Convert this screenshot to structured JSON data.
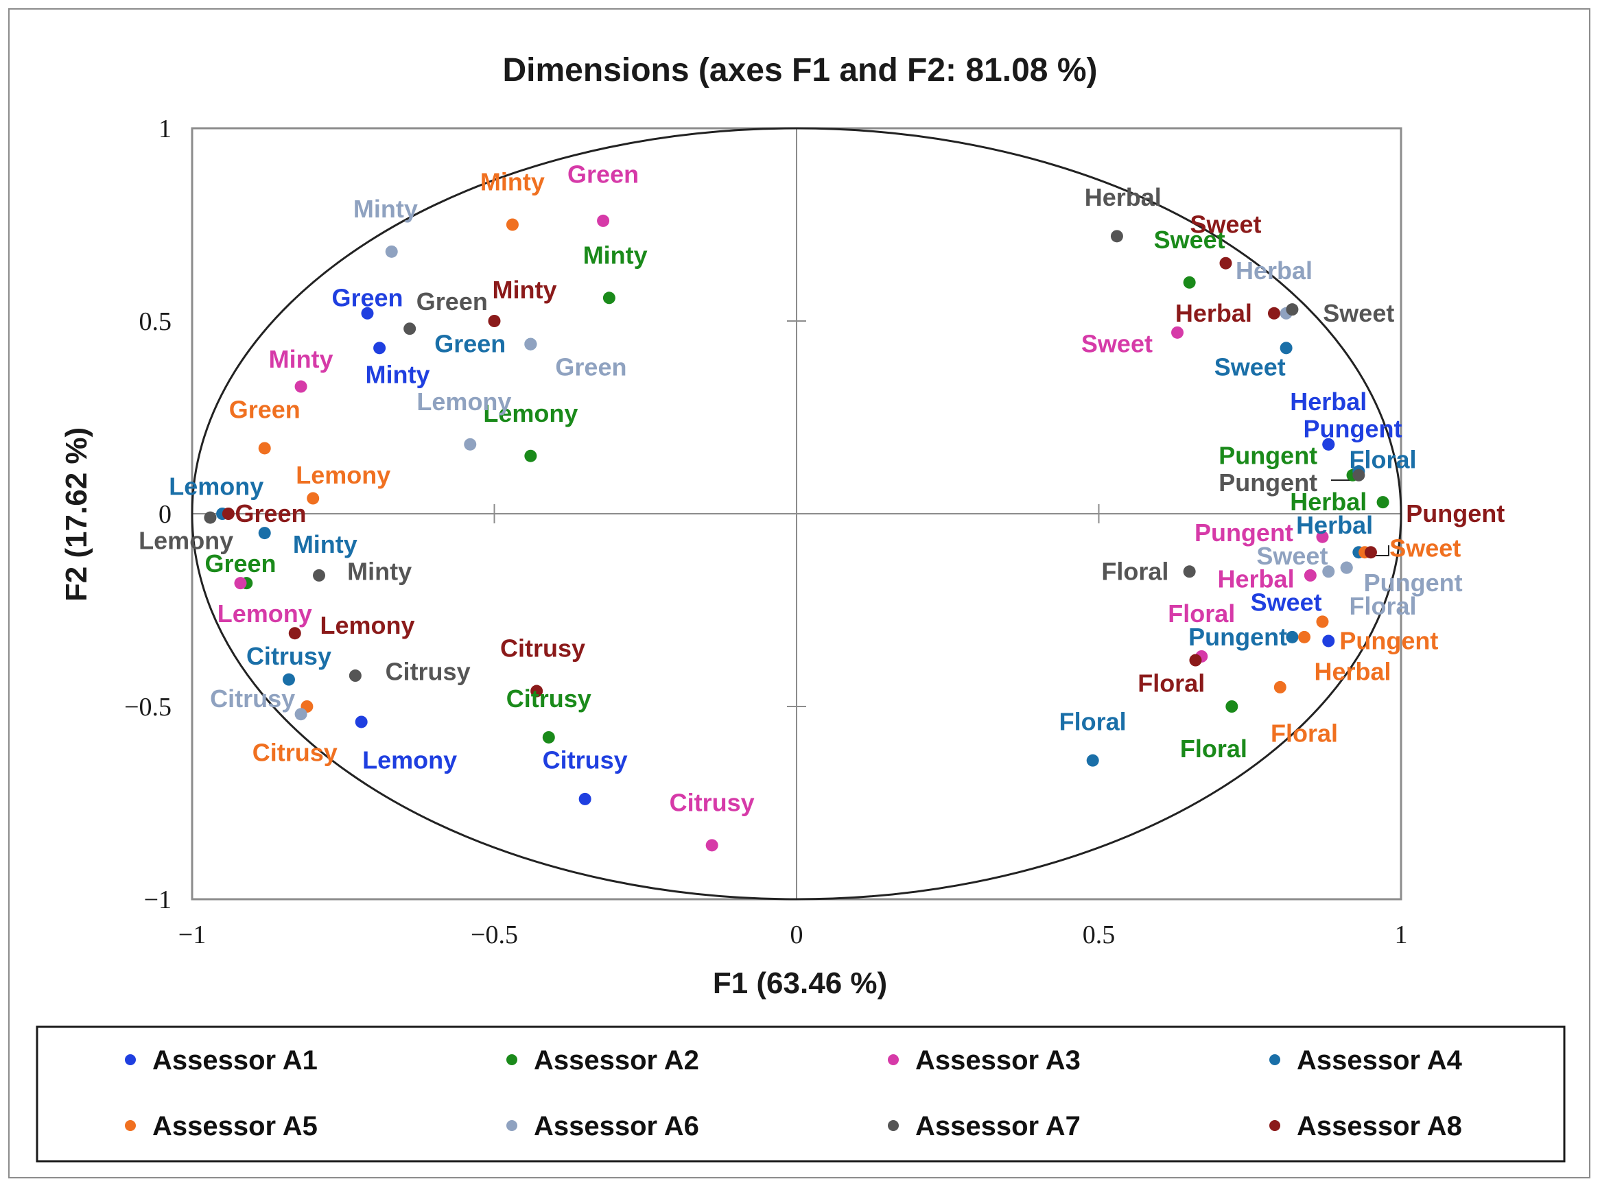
{
  "chart_data": {
    "type": "scatter",
    "title": "Dimensions (axes F1 and F2: 81.08 %)",
    "xlabel": "F1 (63.46 %)",
    "ylabel": "F2 (17.62 %)",
    "xlim": [
      -1,
      1
    ],
    "ylim": [
      -1,
      1
    ],
    "xticks": [
      "−1",
      "−0.5",
      "0",
      "0.5",
      "1"
    ],
    "yticks": [
      "−1",
      "−0.5",
      "0",
      "0.5",
      "1"
    ],
    "xtick_values": [
      -1,
      -0.5,
      0,
      0.5,
      1
    ],
    "ytick_values": [
      -1,
      -0.5,
      0,
      0.5,
      1
    ],
    "correlation_circle": true,
    "legend_position": "bottom",
    "series": [
      {
        "name": "Assessor A1",
        "color": "#1f3fe0",
        "points": [
          {
            "label": "Green",
            "x": -0.71,
            "y": 0.52,
            "lx": -0.71,
            "ly": 0.56
          },
          {
            "label": "Minty",
            "x": -0.69,
            "y": 0.43,
            "lx": -0.66,
            "ly": 0.36
          },
          {
            "label": "Lemony",
            "x": -0.72,
            "y": -0.54,
            "lx": -0.64,
            "ly": -0.64
          },
          {
            "label": "Citrusy",
            "x": -0.35,
            "y": -0.74,
            "lx": -0.35,
            "ly": -0.64
          },
          {
            "label": "Herbal",
            "x": 0.88,
            "y": 0.18,
            "lx": 0.88,
            "ly": 0.29
          },
          {
            "label": "Pungent",
            "x": 0.88,
            "y": 0.18,
            "lx": 0.92,
            "ly": 0.22
          },
          {
            "label": "Sweet",
            "x": 0.88,
            "y": -0.33,
            "lx": 0.81,
            "ly": -0.23
          }
        ]
      },
      {
        "name": "Assessor A2",
        "color": "#1a8a1a",
        "points": [
          {
            "label": "Minty",
            "x": -0.31,
            "y": 0.56,
            "lx": -0.3,
            "ly": 0.67
          },
          {
            "label": "Lemony",
            "x": -0.44,
            "y": 0.15,
            "lx": -0.44,
            "ly": 0.26
          },
          {
            "label": "Green",
            "x": -0.91,
            "y": -0.18,
            "lx": -0.92,
            "ly": -0.13
          },
          {
            "label": "Citrusy",
            "x": -0.41,
            "y": -0.58,
            "lx": -0.41,
            "ly": -0.48
          },
          {
            "label": "Sweet",
            "x": 0.65,
            "y": 0.6,
            "lx": 0.65,
            "ly": 0.71
          },
          {
            "label": "Pungent",
            "x": 0.92,
            "y": 0.1,
            "lx": 0.78,
            "ly": 0.15
          },
          {
            "label": "Herbal",
            "x": 0.97,
            "y": 0.03,
            "lx": 0.88,
            "ly": 0.03
          },
          {
            "label": "Floral",
            "x": 0.72,
            "y": -0.5,
            "lx": 0.69,
            "ly": -0.61
          }
        ]
      },
      {
        "name": "Assessor A3",
        "color": "#d63aa8",
        "points": [
          {
            "label": "Green",
            "x": -0.32,
            "y": 0.76,
            "lx": -0.32,
            "ly": 0.88
          },
          {
            "label": "Minty",
            "x": -0.82,
            "y": 0.33,
            "lx": -0.82,
            "ly": 0.4
          },
          {
            "label": "Lemony",
            "x": -0.92,
            "y": -0.18,
            "lx": -0.88,
            "ly": -0.26
          },
          {
            "label": "Citrusy",
            "x": -0.14,
            "y": -0.86,
            "lx": -0.14,
            "ly": -0.75
          },
          {
            "label": "Sweet",
            "x": 0.63,
            "y": 0.47,
            "lx": 0.53,
            "ly": 0.44
          },
          {
            "label": "Pungent",
            "x": 0.87,
            "y": -0.06,
            "lx": 0.74,
            "ly": -0.05
          },
          {
            "label": "Herbal",
            "x": 0.85,
            "y": -0.16,
            "lx": 0.76,
            "ly": -0.17
          },
          {
            "label": "Floral",
            "x": 0.67,
            "y": -0.37,
            "lx": 0.67,
            "ly": -0.26
          }
        ]
      },
      {
        "name": "Assessor A4",
        "color": "#1a6fa8",
        "points": [
          {
            "label": "Green",
            "x": -0.44,
            "y": 0.44,
            "lx": -0.54,
            "ly": 0.44
          },
          {
            "label": "Lemony",
            "x": -0.95,
            "y": 0.0,
            "lx": -0.96,
            "ly": 0.07
          },
          {
            "label": "Minty",
            "x": -0.88,
            "y": -0.05,
            "lx": -0.78,
            "ly": -0.08
          },
          {
            "label": "Citrusy",
            "x": -0.84,
            "y": -0.43,
            "lx": -0.84,
            "ly": -0.37
          },
          {
            "label": "Sweet",
            "x": 0.81,
            "y": 0.43,
            "lx": 0.75,
            "ly": 0.38
          },
          {
            "label": "Floral",
            "x": 0.49,
            "y": -0.64,
            "lx": 0.49,
            "ly": -0.54
          },
          {
            "label": "Floral",
            "x": 0.93,
            "y": 0.11,
            "lx": 0.97,
            "ly": 0.14
          },
          {
            "label": "Herbal",
            "x": 0.93,
            "y": -0.1,
            "lx": 0.89,
            "ly": -0.03
          },
          {
            "label": "Pungent",
            "x": 0.82,
            "y": -0.32,
            "lx": 0.73,
            "ly": -0.32
          }
        ]
      },
      {
        "name": "Assessor A5",
        "color": "#f07020",
        "points": [
          {
            "label": "Minty",
            "x": -0.47,
            "y": 0.75,
            "lx": -0.47,
            "ly": 0.86
          },
          {
            "label": "Green",
            "x": -0.88,
            "y": 0.17,
            "lx": -0.88,
            "ly": 0.27
          },
          {
            "label": "Lemony",
            "x": -0.8,
            "y": 0.04,
            "lx": -0.75,
            "ly": 0.1
          },
          {
            "label": "Citrusy",
            "x": -0.81,
            "y": -0.5,
            "lx": -0.83,
            "ly": -0.62
          },
          {
            "label": "Sweet",
            "x": 0.94,
            "y": -0.1,
            "lx": 1.04,
            "ly": -0.09
          },
          {
            "label": "Pungent",
            "x": 0.87,
            "y": -0.28,
            "lx": 0.98,
            "ly": -0.33
          },
          {
            "label": "Herbal",
            "x": 0.8,
            "y": -0.45,
            "lx": 0.92,
            "ly": -0.41
          },
          {
            "label": "Floral",
            "x": 0.84,
            "y": -0.32,
            "lx": 0.84,
            "ly": -0.57
          }
        ]
      },
      {
        "name": "Assessor A6",
        "color": "#8fa2c0",
        "points": [
          {
            "label": "Minty",
            "x": -0.67,
            "y": 0.68,
            "lx": -0.68,
            "ly": 0.79
          },
          {
            "label": "Green",
            "x": -0.44,
            "y": 0.44,
            "lx": -0.34,
            "ly": 0.38
          },
          {
            "label": "Lemony",
            "x": -0.54,
            "y": 0.18,
            "lx": -0.55,
            "ly": 0.29
          },
          {
            "label": "Citrusy",
            "x": -0.82,
            "y": -0.52,
            "lx": -0.9,
            "ly": -0.48
          },
          {
            "label": "Herbal",
            "x": 0.81,
            "y": 0.52,
            "lx": 0.79,
            "ly": 0.63
          },
          {
            "label": "Sweet",
            "x": 0.88,
            "y": -0.15,
            "lx": 0.82,
            "ly": -0.11
          },
          {
            "label": "Pungent",
            "x": 0.91,
            "y": -0.14,
            "lx": 1.02,
            "ly": -0.18
          },
          {
            "label": "Floral",
            "x": 0.91,
            "y": -0.14,
            "lx": 0.97,
            "ly": -0.24
          }
        ]
      },
      {
        "name": "Assessor A7",
        "color": "#555555",
        "points": [
          {
            "label": "Green",
            "x": -0.64,
            "y": 0.48,
            "lx": -0.57,
            "ly": 0.55
          },
          {
            "label": "Lemony",
            "x": -0.97,
            "y": -0.01,
            "lx": -1.01,
            "ly": -0.07
          },
          {
            "label": "Minty",
            "x": -0.79,
            "y": -0.16,
            "lx": -0.69,
            "ly": -0.15
          },
          {
            "label": "Citrusy",
            "x": -0.73,
            "y": -0.42,
            "lx": -0.61,
            "ly": -0.41
          },
          {
            "label": "Herbal",
            "x": 0.53,
            "y": 0.72,
            "lx": 0.54,
            "ly": 0.82
          },
          {
            "label": "Sweet",
            "x": 0.82,
            "y": 0.53,
            "lx": 0.93,
            "ly": 0.52
          },
          {
            "label": "Pungent",
            "x": 0.93,
            "y": 0.1,
            "lx": 0.78,
            "ly": 0.08
          },
          {
            "label": "Floral",
            "x": 0.65,
            "y": -0.15,
            "lx": 0.56,
            "ly": -0.15
          }
        ]
      },
      {
        "name": "Assessor A8",
        "color": "#8b1a1a",
        "points": [
          {
            "label": "Minty",
            "x": -0.5,
            "y": 0.5,
            "lx": -0.45,
            "ly": 0.58
          },
          {
            "label": "Green",
            "x": -0.94,
            "y": 0.0,
            "lx": -0.87,
            "ly": 0.0
          },
          {
            "label": "Lemony",
            "x": -0.83,
            "y": -0.31,
            "lx": -0.71,
            "ly": -0.29
          },
          {
            "label": "Citrusy",
            "x": -0.43,
            "y": -0.46,
            "lx": -0.42,
            "ly": -0.35
          },
          {
            "label": "Sweet",
            "x": 0.71,
            "y": 0.65,
            "lx": 0.71,
            "ly": 0.75
          },
          {
            "label": "Herbal",
            "x": 0.79,
            "y": 0.52,
            "lx": 0.69,
            "ly": 0.52
          },
          {
            "label": "Pungent",
            "x": 0.95,
            "y": -0.1,
            "lx": 1.09,
            "ly": 0.0
          },
          {
            "label": "Floral",
            "x": 0.66,
            "y": -0.38,
            "lx": 0.62,
            "ly": -0.44
          }
        ]
      }
    ]
  }
}
